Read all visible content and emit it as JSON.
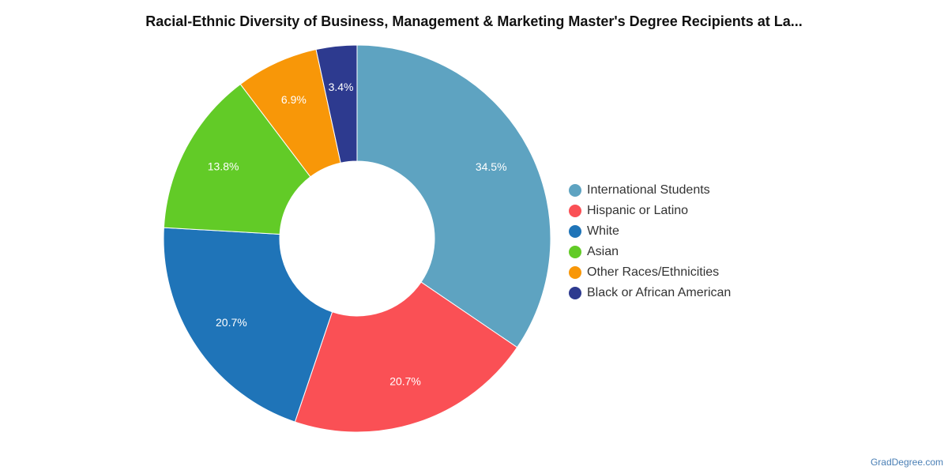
{
  "chart_data": {
    "type": "pie",
    "variant": "donut",
    "title": "Racial-Ethnic Diversity of Business, Management & Marketing Master's Degree Recipients at La...",
    "slices": [
      {
        "label": "International Students",
        "value": 34.5,
        "display": "34.5%",
        "color": "#5ea3c1"
      },
      {
        "label": "Hispanic or Latino",
        "value": 20.7,
        "display": "20.7%",
        "color": "#fa5055"
      },
      {
        "label": "White",
        "value": 20.7,
        "display": "20.7%",
        "color": "#1f74b8"
      },
      {
        "label": "Asian",
        "value": 13.8,
        "display": "13.8%",
        "color": "#62cb27"
      },
      {
        "label": "Other Races/Ethnicities",
        "value": 6.9,
        "display": "6.9%",
        "color": "#f89708"
      },
      {
        "label": "Black or African American",
        "value": 3.4,
        "display": "3.4%",
        "color": "#2d3a8f"
      }
    ],
    "legend_position": "right"
  },
  "credit": "GradDegree.com"
}
